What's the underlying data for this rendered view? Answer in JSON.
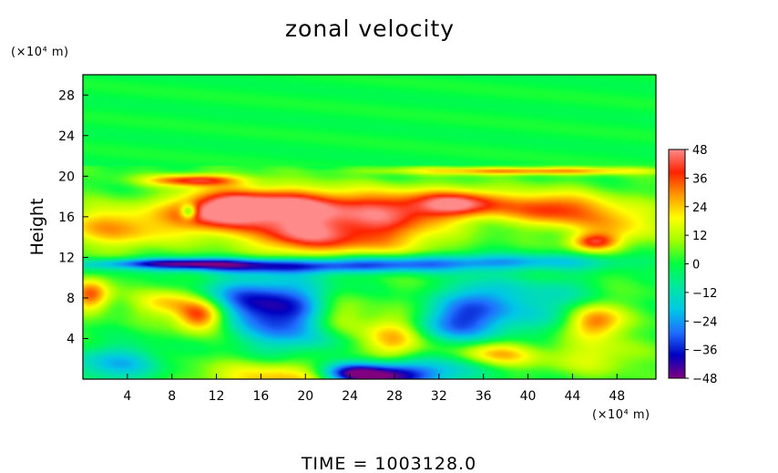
{
  "chart_data": {
    "type": "heatmap",
    "title": "zonal velocity",
    "xlabel": "",
    "ylabel": "Height",
    "x_unit": "(×10⁴ m)",
    "y_unit": "(×10⁴ m)",
    "xlim": [
      0,
      51.5
    ],
    "ylim": [
      0,
      30
    ],
    "x_ticks": [
      4,
      8,
      12,
      16,
      20,
      24,
      28,
      32,
      36,
      40,
      44,
      48
    ],
    "y_ticks": [
      4,
      8,
      12,
      16,
      20,
      24,
      28
    ],
    "colorbar": {
      "range": [
        -48,
        48
      ],
      "ticks": [
        48,
        36,
        24,
        12,
        0,
        -12,
        -24,
        -36,
        -48
      ],
      "colors": [
        "#800080",
        "#0000c0",
        "#1f6fff",
        "#00c8e6",
        "#00e6a0",
        "#00ff40",
        "#a0ff00",
        "#ffff00",
        "#ff9900",
        "#ff2200",
        "#ff8a8a"
      ]
    },
    "features": [
      {
        "x": 18,
        "y": 0,
        "sx": 5,
        "sy": 1.3,
        "v": 24
      },
      {
        "x": 27,
        "y": 0.3,
        "sx": 3,
        "sy": 1,
        "v": -48
      },
      {
        "x": 24,
        "y": 0.6,
        "sx": 2,
        "sy": 0.7,
        "v": -30
      },
      {
        "x": 3,
        "y": 1.5,
        "sx": 3,
        "sy": 1.3,
        "v": -22
      },
      {
        "x": 33,
        "y": 1,
        "sx": 3,
        "sy": 1,
        "v": -18
      },
      {
        "x": 37,
        "y": 2.4,
        "sx": 2.6,
        "sy": 0.9,
        "v": 26
      },
      {
        "x": 46,
        "y": 2.2,
        "sx": 3,
        "sy": 1.2,
        "v": 14
      },
      {
        "x": 18.5,
        "y": 6.3,
        "sx": 3.2,
        "sy": 2.4,
        "v": -38
      },
      {
        "x": 14,
        "y": 8,
        "sx": 3,
        "sy": 1.5,
        "v": -22
      },
      {
        "x": 10.5,
        "y": 6.3,
        "sx": 1.5,
        "sy": 1.1,
        "v": 38
      },
      {
        "x": 7.5,
        "y": 7.5,
        "sx": 2,
        "sy": 1,
        "v": 22
      },
      {
        "x": 0.7,
        "y": 8.3,
        "sx": 1.2,
        "sy": 1.1,
        "v": 34
      },
      {
        "x": 34,
        "y": 5.5,
        "sx": 3.2,
        "sy": 1.4,
        "v": -30
      },
      {
        "x": 36,
        "y": 8,
        "sx": 2.5,
        "sy": 1.5,
        "v": -24
      },
      {
        "x": 28,
        "y": 4.2,
        "sx": 1.8,
        "sy": 1.7,
        "v": 28
      },
      {
        "x": 22.5,
        "y": 6.2,
        "sx": 1.8,
        "sy": 1.4,
        "v": 22
      },
      {
        "x": 46,
        "y": 5.7,
        "sx": 1.8,
        "sy": 1.2,
        "v": 34
      },
      {
        "x": 42.5,
        "y": 7.5,
        "sx": 2.3,
        "sy": 2,
        "v": -16
      },
      {
        "x": 8,
        "y": 11.4,
        "sx": 5,
        "sy": 0.35,
        "v": -34
      },
      {
        "x": 19,
        "y": 11.1,
        "sx": 10,
        "sy": 0.5,
        "v": -32
      },
      {
        "x": 35,
        "y": 11.6,
        "sx": 10,
        "sy": 0.55,
        "v": -22
      },
      {
        "x": 12,
        "y": 16.5,
        "sx": 3,
        "sy": 1.5,
        "v": 42
      },
      {
        "x": 18,
        "y": 17.2,
        "sx": 4,
        "sy": 1.2,
        "v": 40
      },
      {
        "x": 19,
        "y": 14.5,
        "sx": 3,
        "sy": 1.5,
        "v": 30
      },
      {
        "x": 27,
        "y": 16.5,
        "sx": 4,
        "sy": 1.5,
        "v": 36
      },
      {
        "x": 34,
        "y": 17.3,
        "sx": 3,
        "sy": 1,
        "v": 40
      },
      {
        "x": 42,
        "y": 16.8,
        "sx": 3,
        "sy": 1.2,
        "v": 34
      },
      {
        "x": 3,
        "y": 15,
        "sx": 4,
        "sy": 1.5,
        "v": 26
      },
      {
        "x": 48,
        "y": 15.5,
        "sx": 3,
        "sy": 1.5,
        "v": 22
      },
      {
        "x": 46,
        "y": 13.5,
        "sx": 1.5,
        "sy": 0.6,
        "v": 32
      },
      {
        "x": 10,
        "y": 19.6,
        "sx": 3,
        "sy": 0.4,
        "v": 36
      },
      {
        "x": 40,
        "y": 20.5,
        "sx": 8,
        "sy": 0.25,
        "v": 30
      },
      {
        "x": 9.5,
        "y": 16.5,
        "sx": 0.5,
        "sy": 0.5,
        "v": -30
      },
      {
        "x": 25,
        "y": 13.8,
        "sx": 5,
        "sy": 1.3,
        "v": 24
      }
    ]
  },
  "time_label": "TIME  =  1003128.0"
}
